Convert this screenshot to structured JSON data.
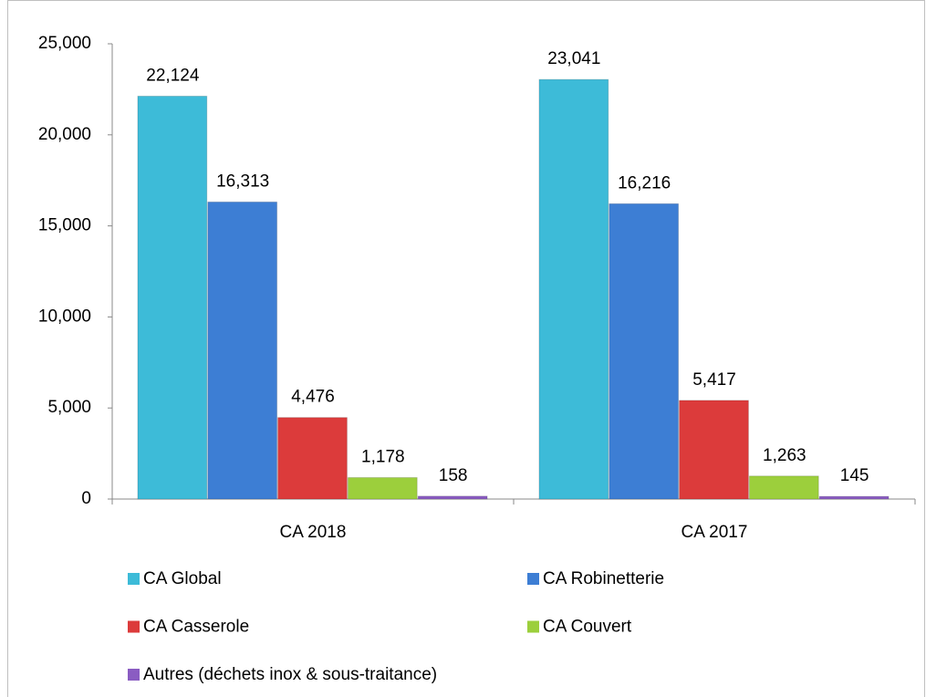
{
  "chart_data": {
    "type": "bar",
    "categories": [
      "CA 2018",
      "CA 2017"
    ],
    "series": [
      {
        "name": "CA Global",
        "color": "#3dbbd8",
        "values": [
          22124,
          23041
        ],
        "value_labels": [
          "22,124",
          "23,041"
        ]
      },
      {
        "name": "CA Robinetterie",
        "color": "#3d7ed4",
        "values": [
          16313,
          16216
        ],
        "value_labels": [
          "16,313",
          "16,216"
        ]
      },
      {
        "name": "CA Casserole",
        "color": "#dc3b3b",
        "values": [
          4476,
          5417
        ],
        "value_labels": [
          "4,476",
          "5,417"
        ]
      },
      {
        "name": "CA Couvert",
        "color": "#9ccf3c",
        "values": [
          1178,
          1263
        ],
        "value_labels": [
          "1,178",
          "1,263"
        ]
      },
      {
        "name": "Autres (déchets inox & sous-traitance)",
        "color": "#8a5cc2",
        "values": [
          158,
          145
        ]
      }
    ],
    "ylim": [
      0,
      25000
    ],
    "yticks": [
      0,
      {
        "value": 5000,
        "label": "5,000"
      },
      {
        "value": 10000,
        "label": "10,000"
      },
      {
        "value": 15000,
        "label": "15,000"
      },
      {
        "value": 20000,
        "label": "20,000"
      },
      {
        "value": 25000,
        "label": "25,000"
      }
    ],
    "grid": false,
    "legend": "bottom"
  }
}
